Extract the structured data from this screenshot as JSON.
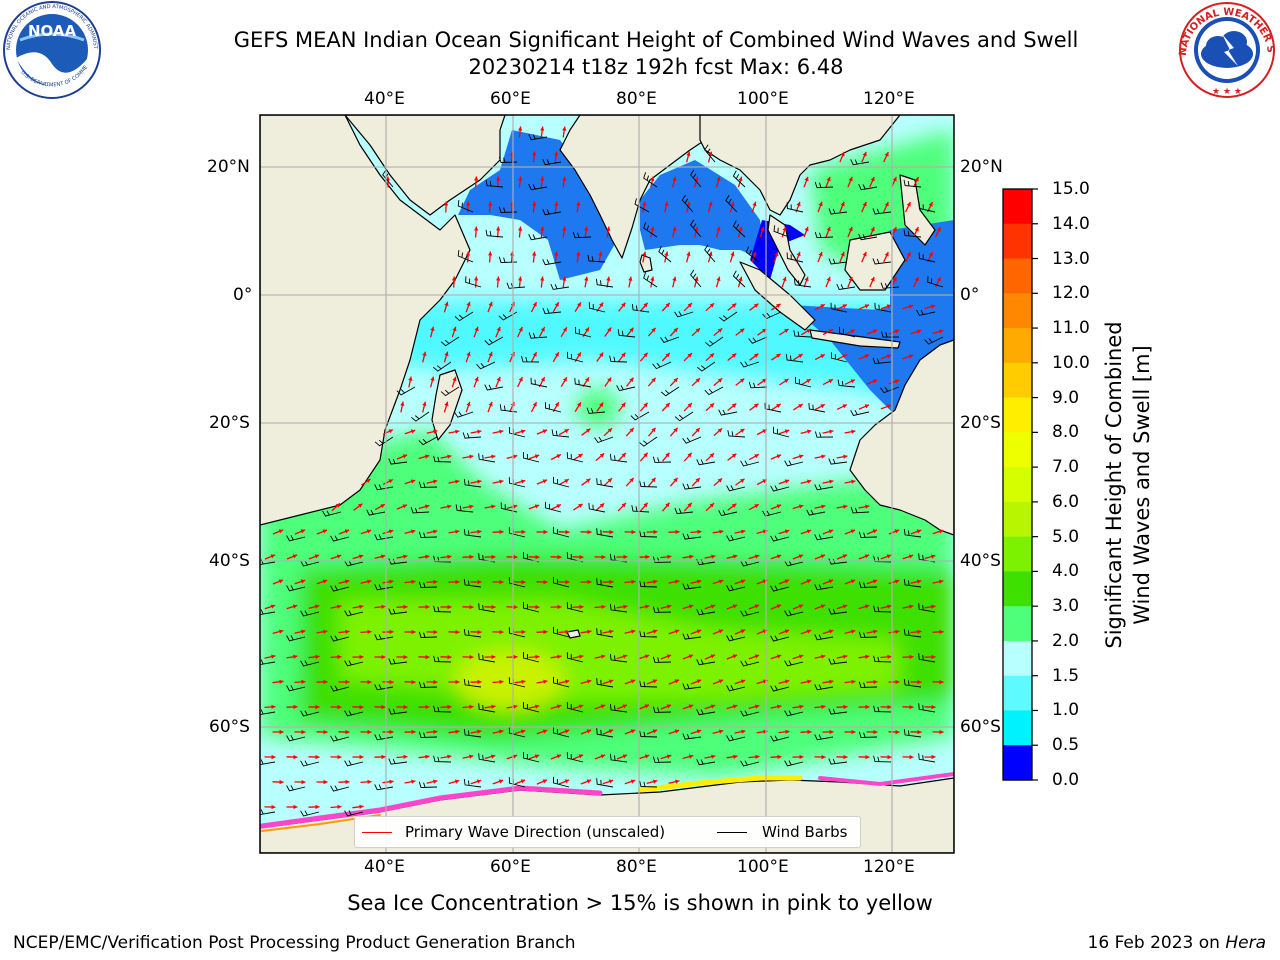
{
  "header": {
    "title_line1": "GEFS MEAN Indian Ocean Significant Height of Combined Wind Waves and Swell",
    "title_line2": "20230214 t18z 192h fcst   Max: 6.48"
  },
  "logos": {
    "noaa_text": "NOAA",
    "noaa_ring_text": "NATIONAL OCEANIC AND ATMOSPHERIC ADMINISTRATION",
    "noaa_bottom_text": "U.S. DEPARTMENT OF COMMERCE",
    "nws_ring_text": "NATIONAL WEATHER SERVICE"
  },
  "map": {
    "lon_ticks": [
      "40°E",
      "60°E",
      "80°E",
      "100°E",
      "120°E"
    ],
    "lat_ticks": [
      "20°N",
      "0°",
      "20°S",
      "40°S",
      "60°S"
    ],
    "colors": {
      "land": "#efeddc",
      "low_wave": "#b8ffff",
      "mid_wave": "#2ef7ff",
      "high_wave": "#4dff7a",
      "peak_wave": "#3ee000",
      "max_wave": "#c9f200",
      "wave_arrow": "#ff0000",
      "wind_barb": "#000000"
    }
  },
  "colorbar": {
    "ticks": [
      "15.0",
      "14.0",
      "13.0",
      "12.0",
      "11.0",
      "10.0",
      "9.0",
      "8.0",
      "7.0",
      "6.0",
      "5.0",
      "4.0",
      "3.0",
      "2.0",
      "1.5",
      "1.0",
      "0.5",
      "0.0"
    ],
    "colors": [
      "#ff0000",
      "#ff3300",
      "#ff6600",
      "#ff8800",
      "#ffaa00",
      "#ffcc00",
      "#ffee00",
      "#eeff00",
      "#d5ff00",
      "#b8f500",
      "#7df200",
      "#3ee000",
      "#4dff7a",
      "#b8ffff",
      "#5dfbff",
      "#00f2ff",
      "#0080ff",
      "#0000ff"
    ],
    "label_line1": "Significant Height of Combined",
    "label_line2": "Wind Waves and Swell [m]"
  },
  "legend": {
    "wave_label": "Primary Wave Direction (unscaled)",
    "wind_label": "Wind Barbs",
    "wave_color": "#ff0000",
    "wind_color": "#000000"
  },
  "footer": {
    "ice_note": "Sea Ice Concentration > 15% is shown in pink to yellow",
    "left": "NCEP/EMC/Verification Post Processing Product Generation Branch",
    "right_date": "16 Feb 2023 on",
    "right_host": "Hera"
  }
}
